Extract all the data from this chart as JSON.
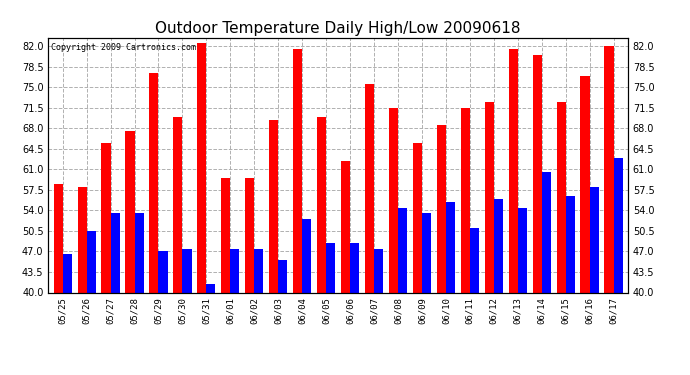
{
  "title": "Outdoor Temperature Daily High/Low 20090618",
  "copyright": "Copyright 2009 Cartronics.com",
  "dates": [
    "05/25",
    "05/26",
    "05/27",
    "05/28",
    "05/29",
    "05/30",
    "05/31",
    "06/01",
    "06/02",
    "06/03",
    "06/04",
    "06/05",
    "06/06",
    "06/07",
    "06/08",
    "06/09",
    "06/10",
    "06/11",
    "06/12",
    "06/13",
    "06/14",
    "06/15",
    "06/16",
    "06/17"
  ],
  "highs": [
    58.5,
    58.0,
    65.5,
    67.5,
    77.5,
    70.0,
    82.5,
    59.5,
    59.5,
    69.5,
    81.5,
    70.0,
    62.5,
    75.5,
    71.5,
    65.5,
    68.5,
    71.5,
    72.5,
    81.5,
    80.5,
    72.5,
    77.0,
    82.0
  ],
  "lows": [
    46.5,
    50.5,
    53.5,
    53.5,
    47.0,
    47.5,
    41.5,
    47.5,
    47.5,
    45.5,
    52.5,
    48.5,
    48.5,
    47.5,
    54.5,
    53.5,
    55.5,
    51.0,
    56.0,
    54.5,
    60.5,
    56.5,
    58.0,
    63.0
  ],
  "high_color": "#ff0000",
  "low_color": "#0000ff",
  "background_color": "#ffffff",
  "grid_color": "#b0b0b0",
  "ymin": 40.0,
  "ymax": 83.5,
  "yticks": [
    40.0,
    43.5,
    47.0,
    50.5,
    54.0,
    57.5,
    61.0,
    64.5,
    68.0,
    71.5,
    75.0,
    78.5,
    82.0
  ],
  "bar_width": 0.38,
  "title_fontsize": 11,
  "tick_fontsize": 6.5,
  "ytick_fontsize": 7.0
}
